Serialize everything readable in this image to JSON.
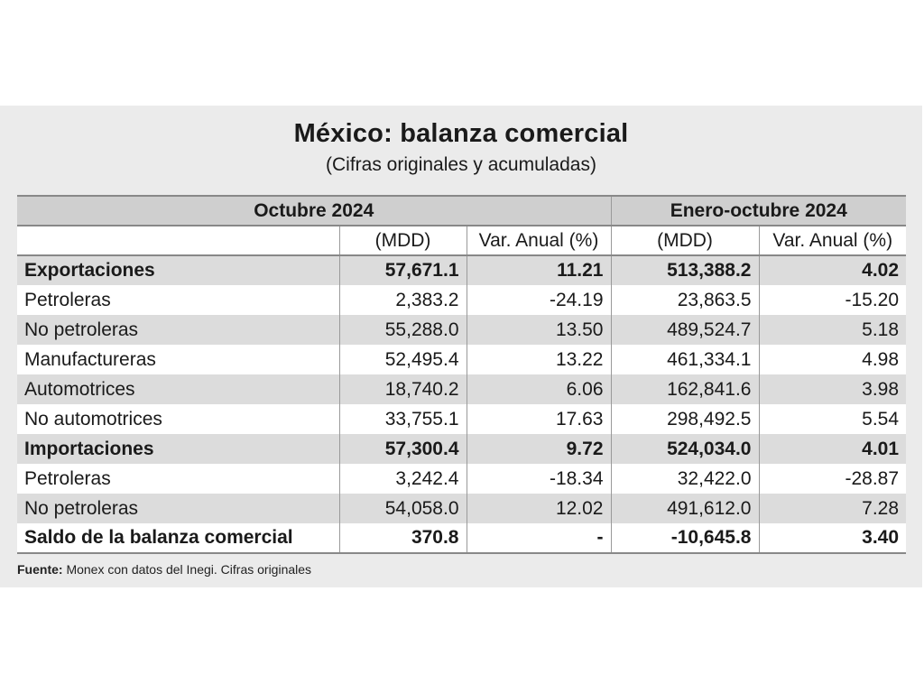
{
  "title": "México: balanza comercial",
  "subtitle": "(Cifras originales y acumuladas)",
  "groups": {
    "left": "Octubre 2024",
    "right": "Enero-octubre 2024"
  },
  "columns": {
    "mdd": "(MDD)",
    "var": "Var. Anual (%)",
    "mdd2": "(MDD)",
    "var2": "Var. Anual (%)"
  },
  "rows": [
    {
      "label": "Exportaciones",
      "oct_mdd": "57,671.1",
      "oct_var": "11.21",
      "ytd_mdd": "513,388.2",
      "ytd_var": "4.02"
    },
    {
      "label": "Petroleras",
      "oct_mdd": "2,383.2",
      "oct_var": "-24.19",
      "ytd_mdd": "23,863.5",
      "ytd_var": "-15.20"
    },
    {
      "label": "No petroleras",
      "oct_mdd": "55,288.0",
      "oct_var": "13.50",
      "ytd_mdd": "489,524.7",
      "ytd_var": "5.18"
    },
    {
      "label": "Manufactureras",
      "oct_mdd": "52,495.4",
      "oct_var": "13.22",
      "ytd_mdd": "461,334.1",
      "ytd_var": "4.98"
    },
    {
      "label": "Automotrices",
      "oct_mdd": "18,740.2",
      "oct_var": "6.06",
      "ytd_mdd": "162,841.6",
      "ytd_var": "3.98"
    },
    {
      "label": "No automotrices",
      "oct_mdd": "33,755.1",
      "oct_var": "17.63",
      "ytd_mdd": "298,492.5",
      "ytd_var": "5.54"
    },
    {
      "label": "Importaciones",
      "oct_mdd": "57,300.4",
      "oct_var": "9.72",
      "ytd_mdd": "524,034.0",
      "ytd_var": "4.01"
    },
    {
      "label": "Petroleras",
      "oct_mdd": "3,242.4",
      "oct_var": "-18.34",
      "ytd_mdd": "32,422.0",
      "ytd_var": "-28.87"
    },
    {
      "label": "No petroleras",
      "oct_mdd": "54,058.0",
      "oct_var": "12.02",
      "ytd_mdd": "491,612.0",
      "ytd_var": "7.28"
    },
    {
      "label": "Saldo de la balanza comercial",
      "oct_mdd": "370.8",
      "oct_var": "-",
      "ytd_mdd": "-10,645.8",
      "ytd_var": "3.40"
    }
  ],
  "source": {
    "label": "Fuente:",
    "text": " Monex con datos del Inegi. Cifras originales"
  }
}
